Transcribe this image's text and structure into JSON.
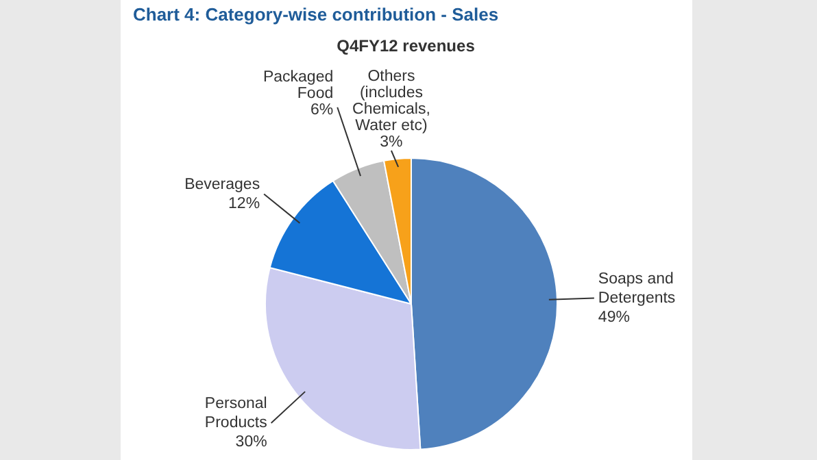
{
  "chart_data": {
    "type": "pie",
    "title": "Chart 4: Category-wise contribution - Sales",
    "subtitle": "Q4FY12 revenues",
    "categories": [
      "Soaps and Detergents",
      "Personal Products",
      "Beverages",
      "Packaged Food",
      "Others (includes Chemicals, Water etc)"
    ],
    "values": [
      49,
      30,
      12,
      6,
      3
    ],
    "value_labels": [
      "49%",
      "30%",
      "12%",
      "6%",
      "3%"
    ],
    "colors": [
      "#4f81bd",
      "#ccccf0",
      "#1574d6",
      "#bfbfbf",
      "#f7a11a"
    ],
    "legend": false
  }
}
